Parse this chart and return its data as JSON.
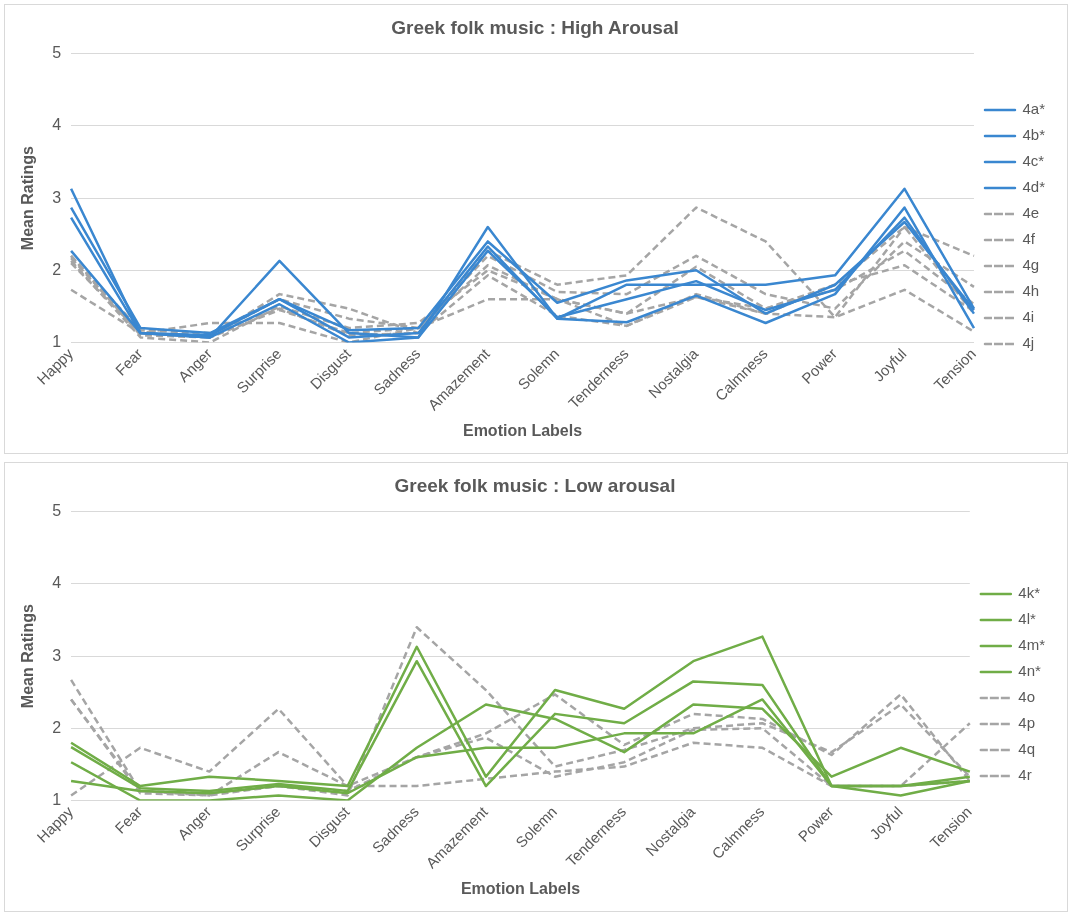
{
  "chart_data": [
    {
      "type": "line",
      "title": "Greek folk music : High Arousal",
      "xlabel": "Emotion Labels",
      "ylabel": "Mean Ratings",
      "categories": [
        "Happy",
        "Fear",
        "Anger",
        "Surprise",
        "Disgust",
        "Sadness",
        "Amazement",
        "Solemn",
        "Tenderness",
        "Nostalgia",
        "Calmness",
        "Power",
        "Joyful",
        "Tension"
      ],
      "ylim": [
        1,
        5
      ],
      "yticks": [
        1,
        2,
        3,
        4,
        5
      ],
      "grid": "y",
      "legend": "right",
      "marker": "none",
      "series": [
        {
          "name": "4a*",
          "color": "#3a87d0",
          "line_style": "solid",
          "values": [
            3.13,
            1.13,
            1.07,
            2.13,
            1.13,
            1.07,
            2.6,
            1.33,
            1.8,
            1.8,
            1.8,
            1.93,
            3.13,
            1.47
          ]
        },
        {
          "name": "4b*",
          "color": "#3a87d0",
          "line_style": "solid",
          "values": [
            2.87,
            1.2,
            1.13,
            1.6,
            1.07,
            1.13,
            2.33,
            1.33,
            1.28,
            1.65,
            1.27,
            1.67,
            2.87,
            1.2
          ]
        },
        {
          "name": "4c*",
          "color": "#3a87d0",
          "line_style": "solid",
          "values": [
            2.73,
            1.13,
            1.07,
            1.53,
            1.0,
            1.07,
            2.27,
            1.35,
            1.6,
            1.85,
            1.45,
            1.73,
            2.73,
            1.4
          ]
        },
        {
          "name": "4d*",
          "color": "#3a87d0",
          "line_style": "solid",
          "values": [
            2.27,
            1.13,
            1.1,
            1.6,
            1.17,
            1.2,
            2.4,
            1.55,
            1.86,
            2.0,
            1.4,
            1.8,
            2.67,
            1.45
          ]
        },
        {
          "name": "4e",
          "color": "#a5a5a5",
          "line_style": "dashed",
          "values": [
            2.2,
            1.1,
            1.07,
            1.67,
            1.47,
            1.13,
            2.27,
            1.8,
            1.93,
            2.87,
            2.4,
            1.35,
            2.6,
            2.2
          ]
        },
        {
          "name": "4f",
          "color": "#a5a5a5",
          "line_style": "dashed",
          "values": [
            2.17,
            1.13,
            1.1,
            1.6,
            1.33,
            1.2,
            2.2,
            1.7,
            1.67,
            2.2,
            1.67,
            1.47,
            2.4,
            1.77
          ]
        },
        {
          "name": "4g",
          "color": "#a5a5a5",
          "line_style": "dashed",
          "values": [
            2.13,
            1.07,
            1.0,
            1.5,
            1.2,
            1.27,
            2.0,
            1.6,
            1.4,
            2.05,
            1.47,
            1.73,
            2.27,
            1.53
          ]
        },
        {
          "name": "4h",
          "color": "#a5a5a5",
          "line_style": "dashed",
          "values": [
            2.2,
            1.17,
            1.13,
            1.47,
            1.1,
            1.13,
            1.93,
            1.37,
            1.23,
            1.67,
            1.4,
            1.8,
            2.07,
            1.43
          ]
        },
        {
          "name": "4i",
          "color": "#a5a5a5",
          "line_style": "dashed",
          "values": [
            2.1,
            1.13,
            1.07,
            1.45,
            1.13,
            1.2,
            2.07,
            1.6,
            1.4,
            1.63,
            1.47,
            1.8,
            2.6,
            1.4
          ]
        },
        {
          "name": "4j",
          "color": "#a5a5a5",
          "line_style": "dashed",
          "values": [
            1.73,
            1.13,
            1.27,
            1.27,
            1.0,
            1.2,
            1.6,
            1.6,
            1.23,
            1.63,
            1.4,
            1.35,
            1.73,
            1.15
          ]
        }
      ]
    },
    {
      "type": "line",
      "title": "Greek folk music : Low arousal",
      "xlabel": "Emotion Labels",
      "ylabel": "Mean Ratings",
      "categories": [
        "Happy",
        "Fear",
        "Anger",
        "Surprise",
        "Disgust",
        "Sadness",
        "Amazement",
        "Solemn",
        "Tenderness",
        "Nostalgia",
        "Calmness",
        "Power",
        "Joyful",
        "Tension"
      ],
      "ylim": [
        1,
        5
      ],
      "yticks": [
        1,
        2,
        3,
        4,
        5
      ],
      "grid": "y",
      "legend": "right",
      "marker": "none",
      "series": [
        {
          "name": "4k*",
          "color": "#70ad47",
          "line_style": "solid",
          "values": [
            1.8,
            1.2,
            1.33,
            1.27,
            1.2,
            3.13,
            1.33,
            2.53,
            2.27,
            2.93,
            3.27,
            1.2,
            1.2,
            1.27
          ]
        },
        {
          "name": "4l*",
          "color": "#70ad47",
          "line_style": "solid",
          "values": [
            1.74,
            1.17,
            1.13,
            1.23,
            1.13,
            2.93,
            1.2,
            2.2,
            2.07,
            2.65,
            2.6,
            1.2,
            1.07,
            1.27
          ]
        },
        {
          "name": "4m*",
          "color": "#70ad47",
          "line_style": "solid",
          "values": [
            1.53,
            1.0,
            1.0,
            1.07,
            1.0,
            1.73,
            2.33,
            2.13,
            1.67,
            2.33,
            2.27,
            1.33,
            1.73,
            1.4
          ]
        },
        {
          "name": "4n*",
          "color": "#70ad47",
          "line_style": "solid",
          "values": [
            1.27,
            1.13,
            1.1,
            1.2,
            1.1,
            1.6,
            1.73,
            1.73,
            1.93,
            1.93,
            2.4,
            1.2,
            1.2,
            1.33
          ]
        },
        {
          "name": "4o",
          "color": "#a5a5a5",
          "line_style": "dashed",
          "values": [
            2.67,
            1.13,
            1.07,
            1.67,
            1.2,
            1.6,
            1.93,
            2.47,
            1.77,
            2.2,
            2.13,
            1.63,
            2.47,
            1.27
          ]
        },
        {
          "name": "4p",
          "color": "#a5a5a5",
          "line_style": "dashed",
          "values": [
            2.4,
            1.1,
            1.07,
            1.2,
            1.07,
            3.4,
            2.53,
            1.47,
            1.7,
            2.0,
            2.07,
            1.67,
            2.33,
            1.33
          ]
        },
        {
          "name": "4q",
          "color": "#a5a5a5",
          "line_style": "dashed",
          "values": [
            2.4,
            1.13,
            1.1,
            1.2,
            1.13,
            1.6,
            1.87,
            1.33,
            1.53,
            1.98,
            2.0,
            1.2,
            1.2,
            1.27
          ]
        },
        {
          "name": "4r",
          "color": "#a5a5a5",
          "line_style": "dashed",
          "values": [
            1.07,
            1.73,
            1.4,
            2.27,
            1.2,
            1.2,
            1.3,
            1.4,
            1.47,
            1.8,
            1.73,
            1.2,
            1.2,
            2.07
          ]
        }
      ]
    }
  ]
}
